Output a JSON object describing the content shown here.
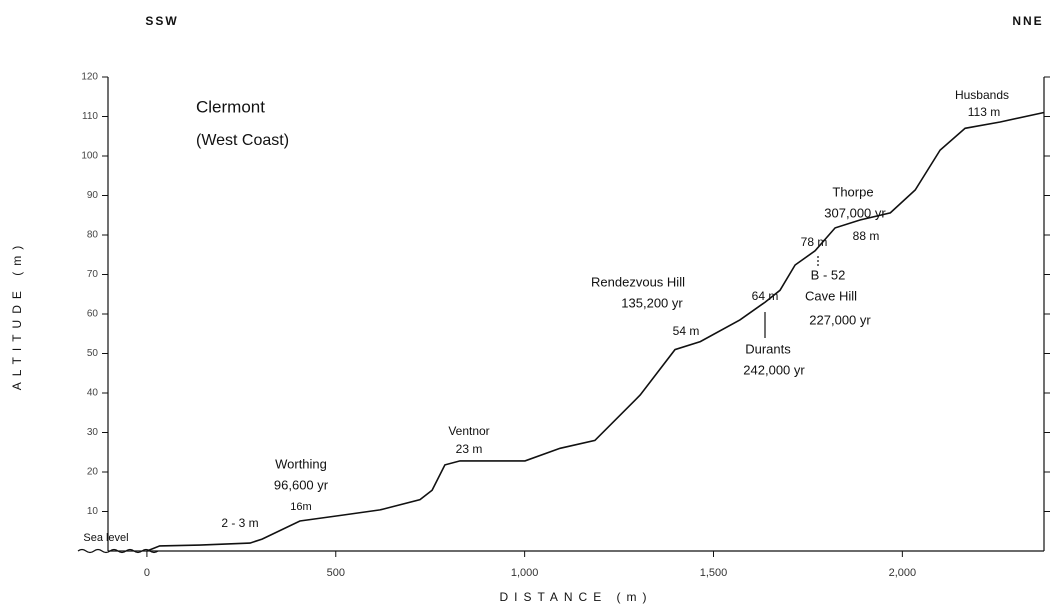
{
  "chart_data": {
    "type": "line",
    "xlabel": "DISTANCE (m)",
    "ylabel": "ALTITUDE (m)",
    "xlim": [
      -103,
      2375
    ],
    "ylim": [
      0,
      120
    ],
    "xticks": [
      0,
      500,
      {
        "value": 1000,
        "label": "1,000"
      },
      {
        "value": 1500,
        "label": "1,500"
      },
      {
        "value": 2000,
        "label": "2,000"
      }
    ],
    "yticks": [
      10,
      20,
      30,
      40,
      50,
      60,
      70,
      80,
      90,
      100,
      110,
      120
    ],
    "color": "#111111",
    "x": [
      0,
      34,
      140,
      273,
      305,
      405,
      511,
      617,
      723,
      755,
      789,
      829,
      1001,
      1094,
      1186,
      1306,
      1398,
      1465,
      1570,
      1637,
      1676,
      1716,
      1769,
      1822,
      1888,
      1968,
      2034,
      2100,
      2166,
      2259,
      2375
    ],
    "values": [
      0,
      1.3,
      1.5,
      2,
      3,
      7.6,
      9,
      10.4,
      13,
      15.4,
      21.8,
      22.8,
      22.8,
      26,
      28,
      39.5,
      51,
      53,
      58.5,
      63,
      66,
      72.4,
      76,
      81.8,
      83.8,
      85.6,
      91.4,
      101.5,
      107,
      108.6,
      111
    ],
    "annotations": [
      "SSW",
      "NNE",
      "Clermont",
      "(West Coast)",
      "Sea level",
      "2 - 3 m",
      "Worthing",
      "96,600 yr",
      "16m",
      "Ventnor",
      "23 m",
      "Rendezvous Hill",
      "135,200 yr",
      "54 m",
      "64 m",
      "Durants",
      "242,000 yr",
      "78 m",
      "B - 52",
      "Cave Hill",
      "227,000 yr",
      "Thorpe",
      "307,000 yr",
      "88 m",
      "Husbands",
      "113 m"
    ]
  }
}
